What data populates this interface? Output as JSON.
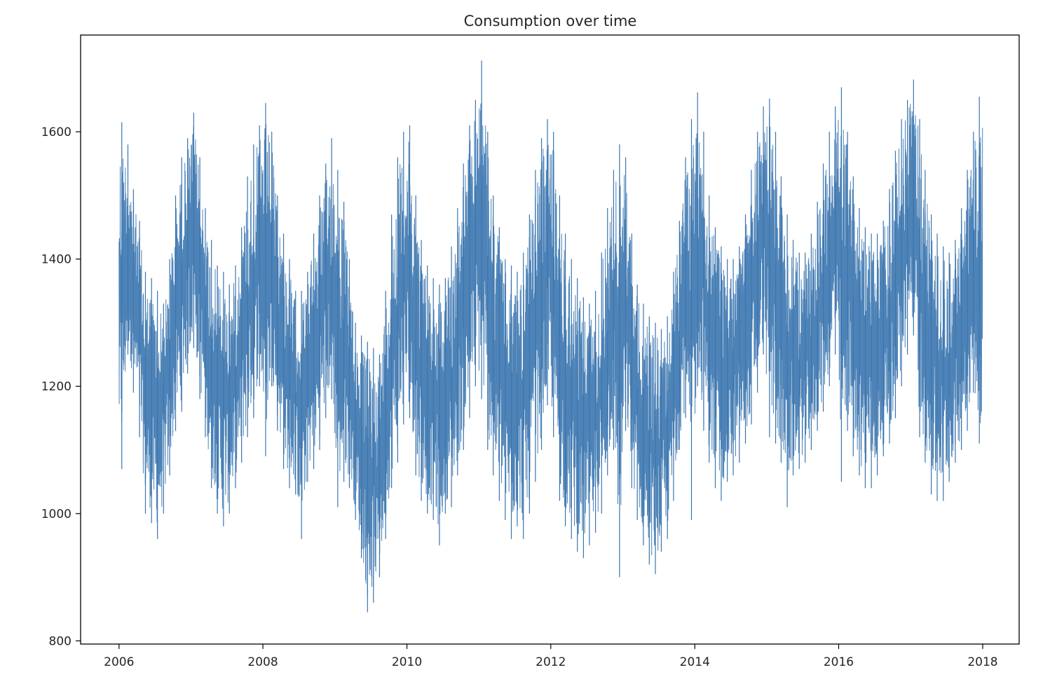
{
  "chart_data": {
    "type": "line",
    "title": "Consumption over time",
    "xlabel": "",
    "ylabel": "",
    "x_range": [
      "2005-06-20",
      "2018-07-05"
    ],
    "ylim": [
      795,
      1752
    ],
    "x_ticks": [
      "2006",
      "2008",
      "2010",
      "2012",
      "2014",
      "2016",
      "2018"
    ],
    "y_ticks": [
      800,
      1000,
      1200,
      1400,
      1600
    ],
    "grid": false,
    "legend": "none",
    "line_color": "#3b75af",
    "series": [
      {
        "sampling": "monthly envelope of a daily series, read off the plot",
        "x": [
          "2006-01",
          "2006-02",
          "2006-03",
          "2006-04",
          "2006-05",
          "2006-06",
          "2006-07",
          "2006-08",
          "2006-09",
          "2006-10",
          "2006-11",
          "2006-12",
          "2007-01",
          "2007-02",
          "2007-03",
          "2007-04",
          "2007-05",
          "2007-06",
          "2007-07",
          "2007-08",
          "2007-09",
          "2007-10",
          "2007-11",
          "2007-12",
          "2008-01",
          "2008-02",
          "2008-03",
          "2008-04",
          "2008-05",
          "2008-06",
          "2008-07",
          "2008-08",
          "2008-09",
          "2008-10",
          "2008-11",
          "2008-12",
          "2009-01",
          "2009-02",
          "2009-03",
          "2009-04",
          "2009-05",
          "2009-06",
          "2009-07",
          "2009-08",
          "2009-09",
          "2009-10",
          "2009-11",
          "2009-12",
          "2010-01",
          "2010-02",
          "2010-03",
          "2010-04",
          "2010-05",
          "2010-06",
          "2010-07",
          "2010-08",
          "2010-09",
          "2010-10",
          "2010-11",
          "2010-12",
          "2011-01",
          "2011-02",
          "2011-03",
          "2011-04",
          "2011-05",
          "2011-06",
          "2011-07",
          "2011-08",
          "2011-09",
          "2011-10",
          "2011-11",
          "2011-12",
          "2012-01",
          "2012-02",
          "2012-03",
          "2012-04",
          "2012-05",
          "2012-06",
          "2012-07",
          "2012-08",
          "2012-09",
          "2012-10",
          "2012-11",
          "2012-12",
          "2013-01",
          "2013-02",
          "2013-03",
          "2013-04",
          "2013-05",
          "2013-06",
          "2013-07",
          "2013-08",
          "2013-09",
          "2013-10",
          "2013-11",
          "2013-12",
          "2014-01",
          "2014-02",
          "2014-03",
          "2014-04",
          "2014-05",
          "2014-06",
          "2014-07",
          "2014-08",
          "2014-09",
          "2014-10",
          "2014-11",
          "2014-12",
          "2015-01",
          "2015-02",
          "2015-03",
          "2015-04",
          "2015-05",
          "2015-06",
          "2015-07",
          "2015-08",
          "2015-09",
          "2015-10",
          "2015-11",
          "2015-12",
          "2016-01",
          "2016-02",
          "2016-03",
          "2016-04",
          "2016-05",
          "2016-06",
          "2016-07",
          "2016-08",
          "2016-09",
          "2016-10",
          "2016-11",
          "2016-12",
          "2017-01",
          "2017-02",
          "2017-03",
          "2017-04",
          "2017-05",
          "2017-06",
          "2017-07",
          "2017-08",
          "2017-09",
          "2017-10",
          "2017-11",
          "2017-12"
        ],
        "max": [
          1615,
          1580,
          1510,
          1460,
          1380,
          1370,
          1350,
          1330,
          1400,
          1500,
          1560,
          1590,
          1630,
          1560,
          1480,
          1430,
          1390,
          1380,
          1360,
          1390,
          1450,
          1530,
          1580,
          1610,
          1645,
          1600,
          1500,
          1440,
          1400,
          1350,
          1350,
          1380,
          1440,
          1500,
          1550,
          1590,
          1540,
          1490,
          1400,
          1300,
          1280,
          1270,
          1260,
          1250,
          1350,
          1470,
          1560,
          1600,
          1610,
          1500,
          1430,
          1390,
          1370,
          1360,
          1370,
          1420,
          1480,
          1550,
          1610,
          1650,
          1712,
          1600,
          1500,
          1450,
          1400,
          1390,
          1380,
          1410,
          1470,
          1540,
          1590,
          1620,
          1600,
          1500,
          1440,
          1400,
          1370,
          1340,
          1330,
          1350,
          1410,
          1480,
          1540,
          1580,
          1560,
          1440,
          1360,
          1330,
          1310,
          1300,
          1290,
          1310,
          1380,
          1460,
          1560,
          1620,
          1662,
          1600,
          1500,
          1450,
          1420,
          1400,
          1400,
          1420,
          1470,
          1540,
          1600,
          1640,
          1652,
          1600,
          1530,
          1470,
          1430,
          1410,
          1410,
          1440,
          1490,
          1550,
          1600,
          1640,
          1670,
          1600,
          1530,
          1480,
          1450,
          1440,
          1440,
          1460,
          1510,
          1570,
          1620,
          1650,
          1682,
          1620,
          1540,
          1470,
          1440,
          1420,
          1410,
          1430,
          1480,
          1540,
          1600,
          1655
        ],
        "min": [
          1070,
          1250,
          1190,
          1120,
          1000,
          985,
          960,
          1000,
          1060,
          1130,
          1160,
          1220,
          1260,
          1180,
          1120,
          1040,
          1000,
          980,
          1000,
          1040,
          1080,
          1120,
          1150,
          1200,
          1090,
          1200,
          1130,
          1070,
          1040,
          1030,
          960,
          1050,
          1070,
          1100,
          1150,
          1180,
          1010,
          1050,
          1040,
          990,
          930,
          845,
          860,
          900,
          960,
          1040,
          1080,
          1140,
          1150,
          1060,
          1020,
          1000,
          990,
          950,
          1000,
          1010,
          1060,
          1100,
          1150,
          1200,
          1180,
          1100,
          1060,
          1020,
          990,
          960,
          980,
          960,
          1000,
          1050,
          1100,
          1170,
          1120,
          1020,
          980,
          960,
          940,
          930,
          950,
          970,
          1000,
          1060,
          1100,
          900,
          1130,
          1040,
          990,
          950,
          920,
          905,
          940,
          960,
          1020,
          1100,
          1150,
          990,
          1200,
          1130,
          1080,
          1040,
          1020,
          1050,
          1060,
          1080,
          1110,
          1140,
          1190,
          1250,
          1120,
          1110,
          1080,
          1010,
          1060,
          1070,
          1080,
          1100,
          1130,
          1160,
          1200,
          1250,
          1050,
          1130,
          1090,
          1060,
          1040,
          1040,
          1060,
          1090,
          1110,
          1150,
          1200,
          1250,
          1280,
          1120,
          1080,
          1030,
          1020,
          1020,
          1050,
          1080,
          1100,
          1130,
          1190,
          1110
        ]
      }
    ]
  }
}
